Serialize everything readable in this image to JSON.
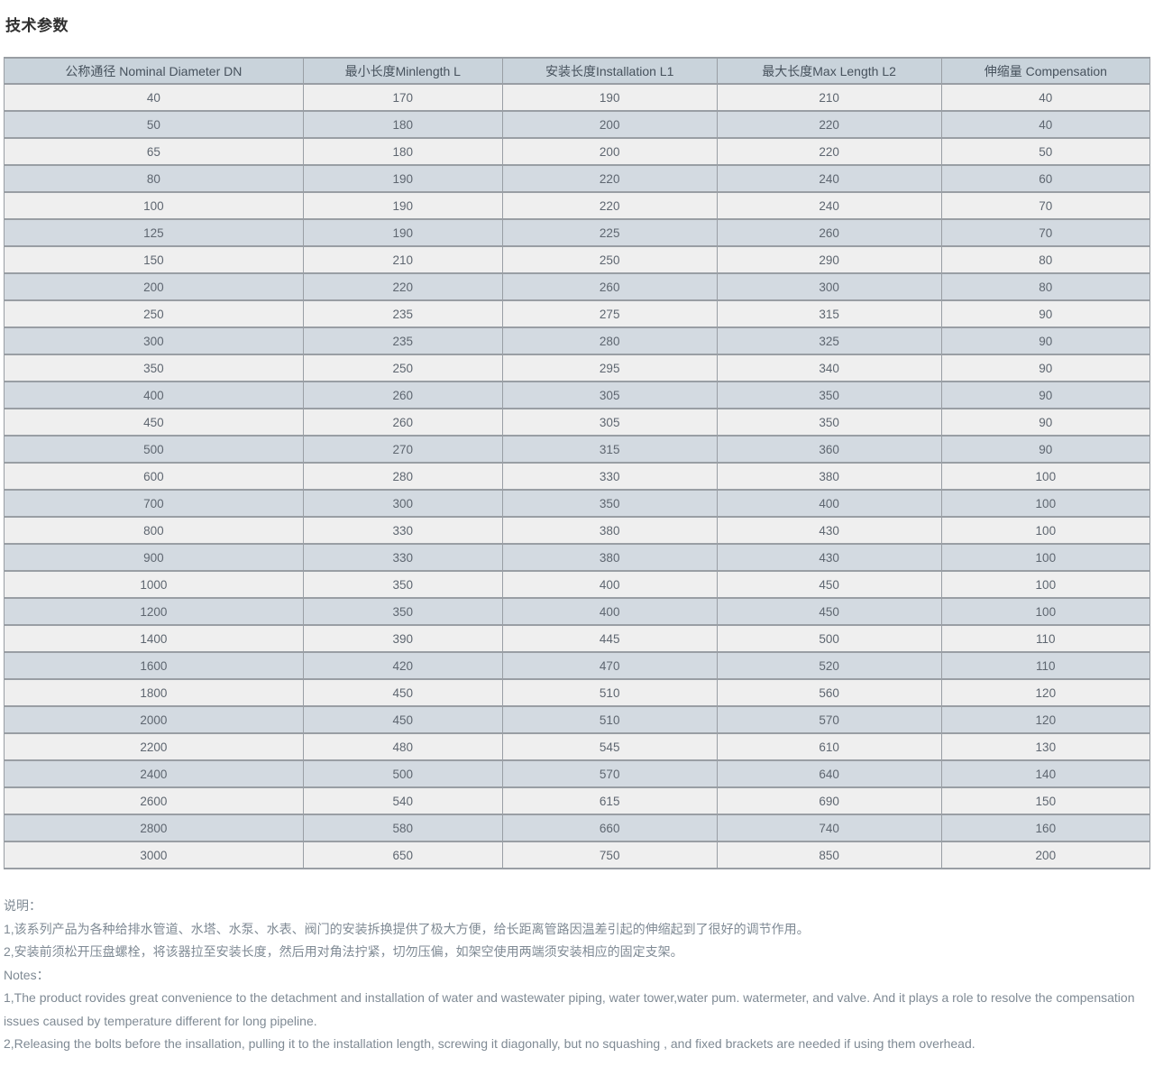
{
  "page": {
    "title": "技术参数"
  },
  "table": {
    "headers": [
      "公称通径 Nominal Diameter DN",
      "最小长度Minlength L",
      "安装长度Installation L1",
      "最大长度Max Length L2",
      "伸缩量 Compensation"
    ],
    "rows": [
      [
        "40",
        "170",
        "190",
        "210",
        "40"
      ],
      [
        "50",
        "180",
        "200",
        "220",
        "40"
      ],
      [
        "65",
        "180",
        "200",
        "220",
        "50"
      ],
      [
        "80",
        "190",
        "220",
        "240",
        "60"
      ],
      [
        "100",
        "190",
        "220",
        "240",
        "70"
      ],
      [
        "125",
        "190",
        "225",
        "260",
        "70"
      ],
      [
        "150",
        "210",
        "250",
        "290",
        "80"
      ],
      [
        "200",
        "220",
        "260",
        "300",
        "80"
      ],
      [
        "250",
        "235",
        "275",
        "315",
        "90"
      ],
      [
        "300",
        "235",
        "280",
        "325",
        "90"
      ],
      [
        "350",
        "250",
        "295",
        "340",
        "90"
      ],
      [
        "400",
        "260",
        "305",
        "350",
        "90"
      ],
      [
        "450",
        "260",
        "305",
        "350",
        "90"
      ],
      [
        "500",
        "270",
        "315",
        "360",
        "90"
      ],
      [
        "600",
        "280",
        "330",
        "380",
        "100"
      ],
      [
        "700",
        "300",
        "350",
        "400",
        "100"
      ],
      [
        "800",
        "330",
        "380",
        "430",
        "100"
      ],
      [
        "900",
        "330",
        "380",
        "430",
        "100"
      ],
      [
        "1000",
        "350",
        "400",
        "450",
        "100"
      ],
      [
        "1200",
        "350",
        "400",
        "450",
        "100"
      ],
      [
        "1400",
        "390",
        "445",
        "500",
        "110"
      ],
      [
        "1600",
        "420",
        "470",
        "520",
        "110"
      ],
      [
        "1800",
        "450",
        "510",
        "560",
        "120"
      ],
      [
        "2000",
        "450",
        "510",
        "570",
        "120"
      ],
      [
        "2200",
        "480",
        "545",
        "610",
        "130"
      ],
      [
        "2400",
        "500",
        "570",
        "640",
        "140"
      ],
      [
        "2600",
        "540",
        "615",
        "690",
        "150"
      ],
      [
        "2800",
        "580",
        "660",
        "740",
        "160"
      ],
      [
        "3000",
        "650",
        "750",
        "850",
        "200"
      ]
    ]
  },
  "notes_cn": {
    "heading": "说明：",
    "items": [
      "1,该系列产品为各种给排水管道、水塔、水泵、水表、阀门的安装拆换提供了极大方便，给长距离管路因温差引起的伸缩起到了很好的调节作用。",
      "2,安装前须松开压盘螺栓，将该器拉至安装长度，然后用对角法拧紧，切勿压偏，如架空使用两端须安装相应的固定支架。"
    ]
  },
  "notes_en": {
    "heading": "Notes：",
    "items": [
      "1,The product rovides great convenience to the detachment and installation of water and wastewater piping, water tower,water pum. watermeter, and valve. And it plays a role to resolve the compensation issues caused by temperature different for long pipeline.",
      "2,Releasing the bolts before the insallation, pulling it to the installation length, screwing it diagonally, but no squashing , and fixed brackets are needed if using them overhead."
    ]
  }
}
